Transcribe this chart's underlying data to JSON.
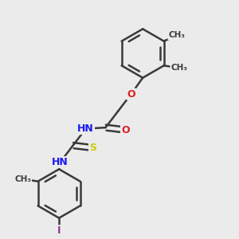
{
  "background_color": "#ebebeb",
  "bond_color": "#3a3a3a",
  "bond_lw": 1.8,
  "atom_colors": {
    "O": "#dd2020",
    "N": "#1a1aee",
    "S": "#cccc00",
    "I": "#993399",
    "C": "#3a3a3a",
    "H": "#606060"
  },
  "figsize": [
    3.0,
    3.0
  ],
  "dpi": 100,
  "xlim": [
    0,
    10
  ],
  "ylim": [
    0,
    10
  ]
}
